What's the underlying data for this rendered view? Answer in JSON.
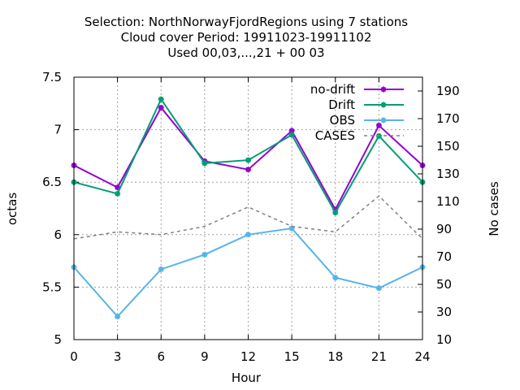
{
  "title_lines": [
    "Selection: NorthNorwayFjordRegions using     7 stations",
    "Cloud cover   Period: 19911023-19911102",
    "Used  00,03,...,21  + 00 03"
  ],
  "chart_data": {
    "type": "line",
    "xlabel": "Hour",
    "ylabel": "octas",
    "y2label": "No cases",
    "x": [
      0,
      3,
      6,
      9,
      12,
      15,
      18,
      21,
      24
    ],
    "xticks": [
      0,
      3,
      6,
      9,
      12,
      15,
      18,
      21,
      24
    ],
    "xlim": [
      0,
      24
    ],
    "ylim": [
      5,
      7.5
    ],
    "yticks": [
      5,
      5.5,
      6,
      6.5,
      7,
      7.5
    ],
    "ytick_labels": [
      "5",
      "5.5",
      "6",
      "6.5",
      "7",
      "7.5"
    ],
    "y2lim": [
      10,
      200
    ],
    "y2ticks": [
      10,
      30,
      50,
      70,
      90,
      110,
      130,
      150,
      170,
      190
    ],
    "grid": true,
    "legend_position": "top-right",
    "series": [
      {
        "name": "no-drift",
        "axis": "y",
        "style": "line-points",
        "color": "#9400d3",
        "values": [
          6.66,
          6.45,
          7.21,
          6.7,
          6.62,
          6.99,
          6.24,
          7.04,
          6.66
        ]
      },
      {
        "name": "Drift",
        "axis": "y",
        "style": "line-points",
        "color": "#009e73",
        "values": [
          6.5,
          6.39,
          7.29,
          6.68,
          6.71,
          6.95,
          6.21,
          6.94,
          6.5
        ]
      },
      {
        "name": "OBS",
        "axis": "y",
        "style": "line-points",
        "color": "#56b4e9",
        "values": [
          5.69,
          5.22,
          5.67,
          5.81,
          6.0,
          6.06,
          5.59,
          5.49,
          5.69
        ]
      },
      {
        "name": "CASES",
        "axis": "y2",
        "style": "dashed",
        "color": "#808080",
        "values": [
          83,
          88,
          86,
          92,
          106,
          92,
          88,
          114,
          83
        ]
      }
    ]
  }
}
